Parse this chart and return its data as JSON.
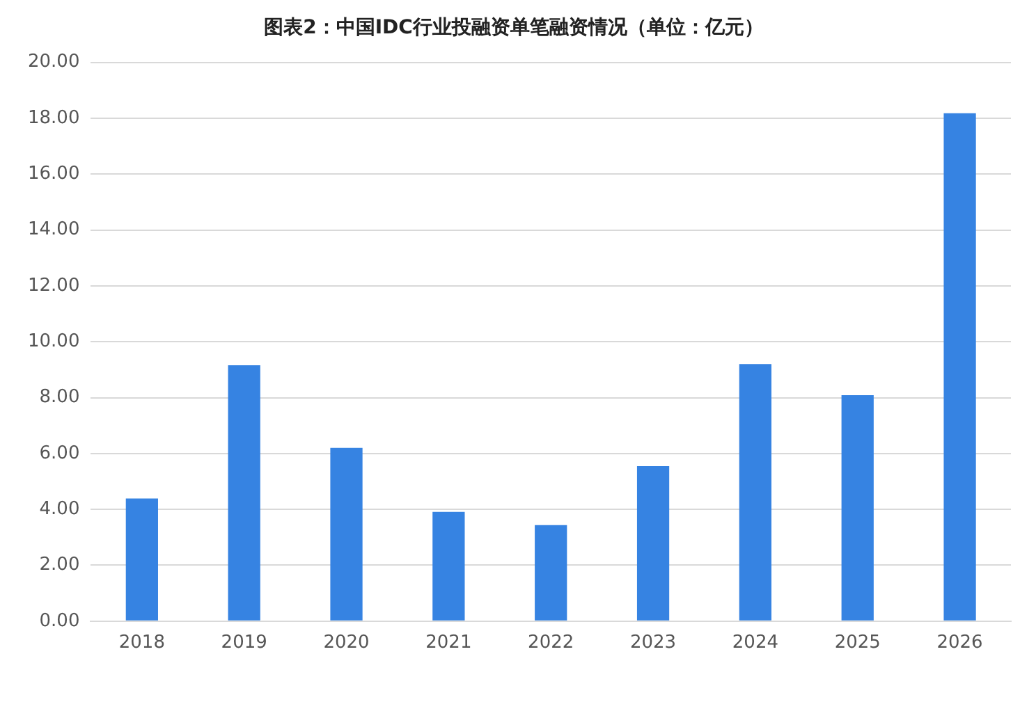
{
  "chart_data": {
    "type": "bar",
    "title": "图表2：中国IDC行业投融资单笔融资情况（单位：亿元）",
    "categories": [
      "2018",
      "2019",
      "2020",
      "2021",
      "2022",
      "2023",
      "2024",
      "2025",
      "2026"
    ],
    "values": [
      4.39,
      9.16,
      6.2,
      3.91,
      3.44,
      5.55,
      9.2,
      8.09,
      18.18
    ],
    "color": "#3683e2",
    "ylim": [
      0,
      20
    ],
    "yticks": [
      {
        "value": 0,
        "label": "0.00"
      },
      {
        "value": 2,
        "label": "2.00"
      },
      {
        "value": 4,
        "label": "4.00"
      },
      {
        "value": 6,
        "label": "6.00"
      },
      {
        "value": 8,
        "label": "8.00"
      },
      {
        "value": 10,
        "label": "10.00"
      },
      {
        "value": 12,
        "label": "12.00"
      },
      {
        "value": 14,
        "label": "14.00"
      },
      {
        "value": 16,
        "label": "16.00"
      },
      {
        "value": 18,
        "label": "18.00"
      },
      {
        "value": 20,
        "label": "20.00"
      }
    ],
    "grid": "y"
  }
}
